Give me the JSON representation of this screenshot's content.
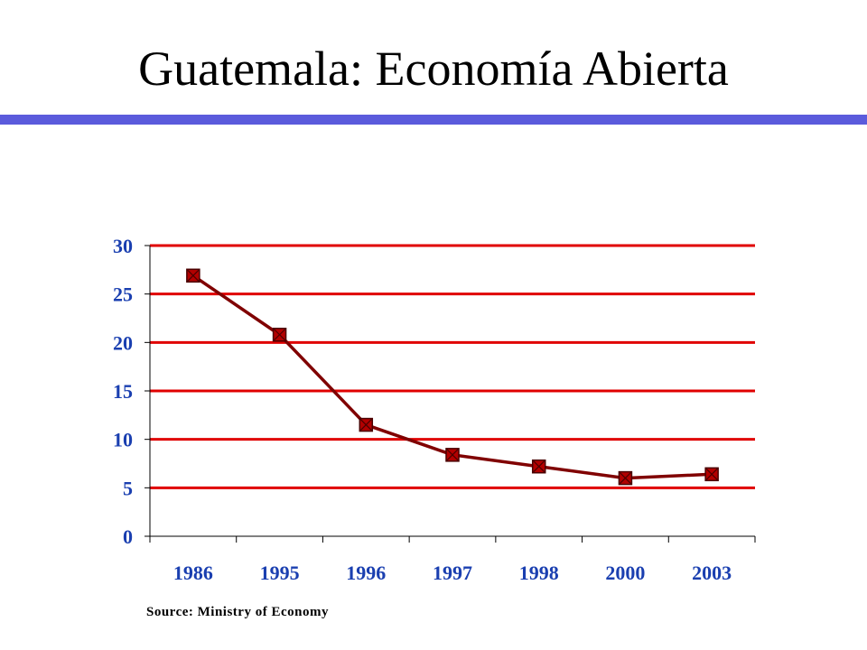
{
  "slide": {
    "title": "Guatemala:  Economía Abierta",
    "source": "Source:  Ministry of Economy",
    "title_bar_color": "#5b5bdc"
  },
  "chart_data": {
    "type": "line",
    "categories": [
      "1986",
      "1995",
      "1996",
      "1997",
      "1998",
      "2000",
      "2003"
    ],
    "values": [
      26.9,
      20.8,
      11.5,
      8.4,
      7.2,
      6.0,
      6.4
    ],
    "ylim": [
      0,
      30
    ],
    "yticks": [
      0,
      5,
      10,
      15,
      20,
      25,
      30
    ],
    "grid": true,
    "legend": "none",
    "colors": {
      "line": "#800000",
      "marker": "#b30000",
      "grid": "#e00000",
      "tick_labels": "#1a3fb0"
    }
  }
}
